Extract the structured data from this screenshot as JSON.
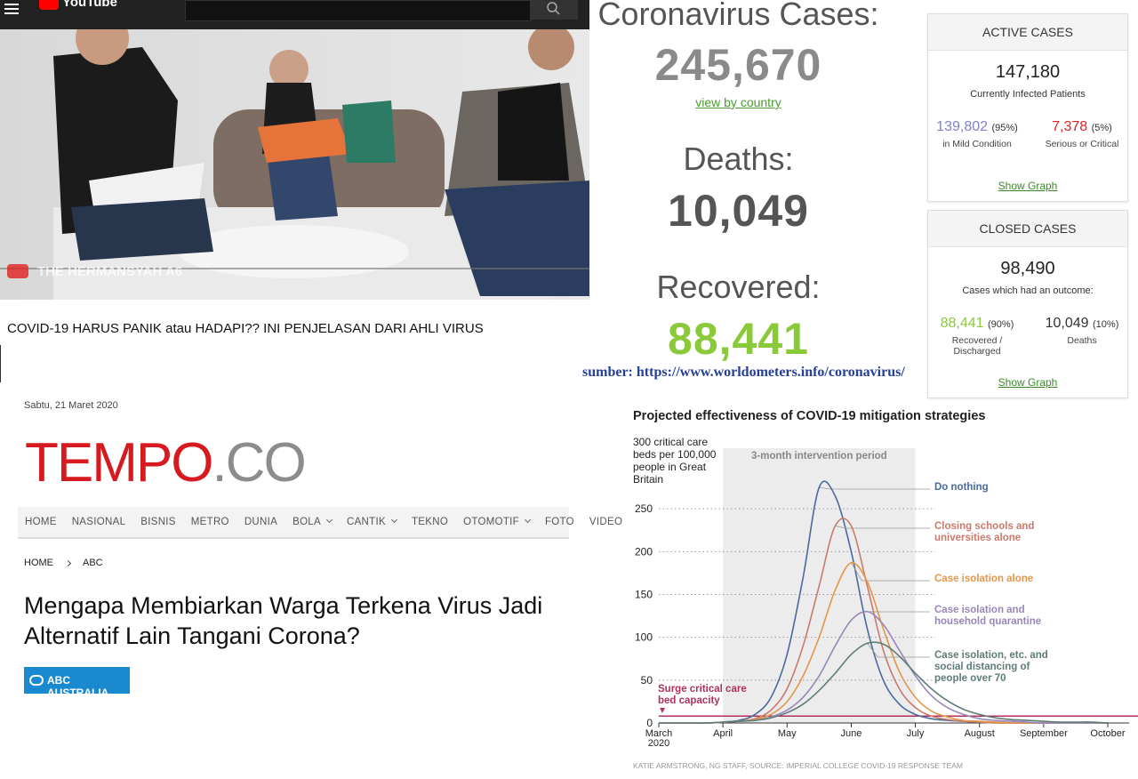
{
  "youtube": {
    "logo": "YouTube",
    "watermark": "THE HERMANSYAH A6",
    "title": "COVID-19 HARUS PANIK atau HADAPI?? INI PENJELASAN DARI AHLI VIRUS"
  },
  "worldometers": {
    "cases_label": "Coronavirus Cases:",
    "cases": "245,670",
    "view_link": "view by country",
    "deaths_label": "Deaths:",
    "deaths": "10,049",
    "recovered_label": "Recovered:",
    "recovered": "88,441",
    "source": "sumber: https://www.worldometers.info/coronavirus/",
    "active": {
      "header": "ACTIVE CASES",
      "total": "147,180",
      "total_label": "Currently Infected Patients",
      "left": "139,802",
      "left_pct": "(95%)",
      "left_label": "in Mild Condition",
      "right": "7,378",
      "right_pct": "(5%)",
      "right_label": "Serious or Critical",
      "link": "Show Graph"
    },
    "closed": {
      "header": "CLOSED CASES",
      "total": "98,490",
      "total_label": "Cases which had an outcome:",
      "left": "88,441",
      "left_pct": "(90%)",
      "left_label": "Recovered / Discharged",
      "right": "10,049",
      "right_pct": "(10%)",
      "right_label": "Deaths",
      "link": "Show Graph"
    }
  },
  "tempo": {
    "date": "Sabtu, 21 Maret 2020",
    "logo_main": "TEMPO",
    "logo_suffix": ".CO",
    "nav": [
      {
        "label": "HOME"
      },
      {
        "label": "NASIONAL"
      },
      {
        "label": "BISNIS"
      },
      {
        "label": "METRO"
      },
      {
        "label": "DUNIA"
      },
      {
        "label": "BOLA",
        "dropdown": true
      },
      {
        "label": "CANTIK",
        "dropdown": true
      },
      {
        "label": "TEKNO"
      },
      {
        "label": "OTOMOTIF",
        "dropdown": true
      },
      {
        "label": "FOTO"
      },
      {
        "label": "VIDEO"
      }
    ],
    "breadcrumb": [
      "HOME",
      "ABC"
    ],
    "headline": "Mengapa Membiarkan Warga Terkena Virus Jadi Alternatif Lain Tangani Corona?",
    "badge": "ABC AUSTRALIA"
  },
  "chart_data": {
    "type": "line",
    "title": "Projected effectiveness of COVID-19 mitigation strategies",
    "y_label": "300 critical care beds per 100,000 people in Great Britain",
    "source": "KATIE ARMSTRONG, NG STAFF, SOURCE: IMPERIAL COLLEGE COVID-19 RESPONSE TEAM",
    "intervention": {
      "label": "3-month intervention period",
      "start": 1,
      "end": 4
    },
    "capacity": {
      "label": "Surge critical care bed capacity",
      "value": 8,
      "color": "#b3305a"
    },
    "x": [
      0,
      0.25,
      0.5,
      0.75,
      1,
      1.25,
      1.5,
      1.75,
      2,
      2.25,
      2.5,
      2.75,
      3,
      3.25,
      3.5,
      3.75,
      4,
      4.25,
      4.5,
      4.75,
      5,
      5.25,
      5.5,
      5.75,
      6,
      6.25,
      6.5,
      6.75,
      7
    ],
    "xlim": [
      0,
      7
    ],
    "xticks": [
      {
        "value": 0,
        "label": "March\n2020"
      },
      {
        "value": 1,
        "label": "April"
      },
      {
        "value": 2,
        "label": "May"
      },
      {
        "value": 3,
        "label": "June"
      },
      {
        "value": 4,
        "label": "July"
      },
      {
        "value": 5,
        "label": "August"
      },
      {
        "value": 6,
        "label": "September"
      },
      {
        "value": 7,
        "label": "October"
      }
    ],
    "ylim": [
      0,
      300
    ],
    "yticks": [
      0,
      50,
      100,
      150,
      200,
      250
    ],
    "grid": true,
    "series": [
      {
        "name": "Do nothing",
        "color": "#4a6a9c",
        "values": [
          0,
          0,
          0,
          0,
          1,
          3,
          10,
          30,
          80,
          170,
          275,
          265,
          200,
          110,
          50,
          22,
          10,
          5,
          3,
          2,
          1,
          1,
          0,
          0,
          0,
          0,
          0,
          0,
          0
        ]
      },
      {
        "name": "Closing schools and universities alone",
        "color": "#c97a6c",
        "values": [
          0,
          0,
          0,
          0,
          1,
          2,
          5,
          15,
          40,
          90,
          160,
          230,
          230,
          160,
          85,
          40,
          18,
          8,
          4,
          2,
          1,
          0,
          0,
          0,
          0,
          0,
          0,
          0,
          0
        ]
      },
      {
        "name": "Case isolation alone",
        "color": "#e2974a",
        "values": [
          0,
          0,
          0,
          0,
          1,
          2,
          4,
          10,
          25,
          55,
          100,
          155,
          187,
          165,
          110,
          60,
          30,
          14,
          7,
          3,
          2,
          1,
          0,
          0,
          0,
          0,
          0,
          0,
          0
        ]
      },
      {
        "name": "Case isolation and household quarantine",
        "color": "#9a86b8",
        "values": [
          0,
          0,
          0,
          0,
          1,
          2,
          3,
          7,
          15,
          30,
          55,
          90,
          120,
          130,
          115,
          85,
          55,
          32,
          18,
          10,
          5,
          3,
          2,
          1,
          0,
          0,
          0,
          0,
          0
        ]
      },
      {
        "name": "Case isolation, etc. and social distancing of people over 70",
        "color": "#5e7c78",
        "values": [
          0,
          0,
          0,
          0,
          1,
          2,
          3,
          6,
          12,
          22,
          38,
          58,
          80,
          93,
          92,
          78,
          58,
          40,
          26,
          16,
          10,
          6,
          4,
          3,
          2,
          1,
          1,
          1,
          0
        ]
      }
    ]
  }
}
